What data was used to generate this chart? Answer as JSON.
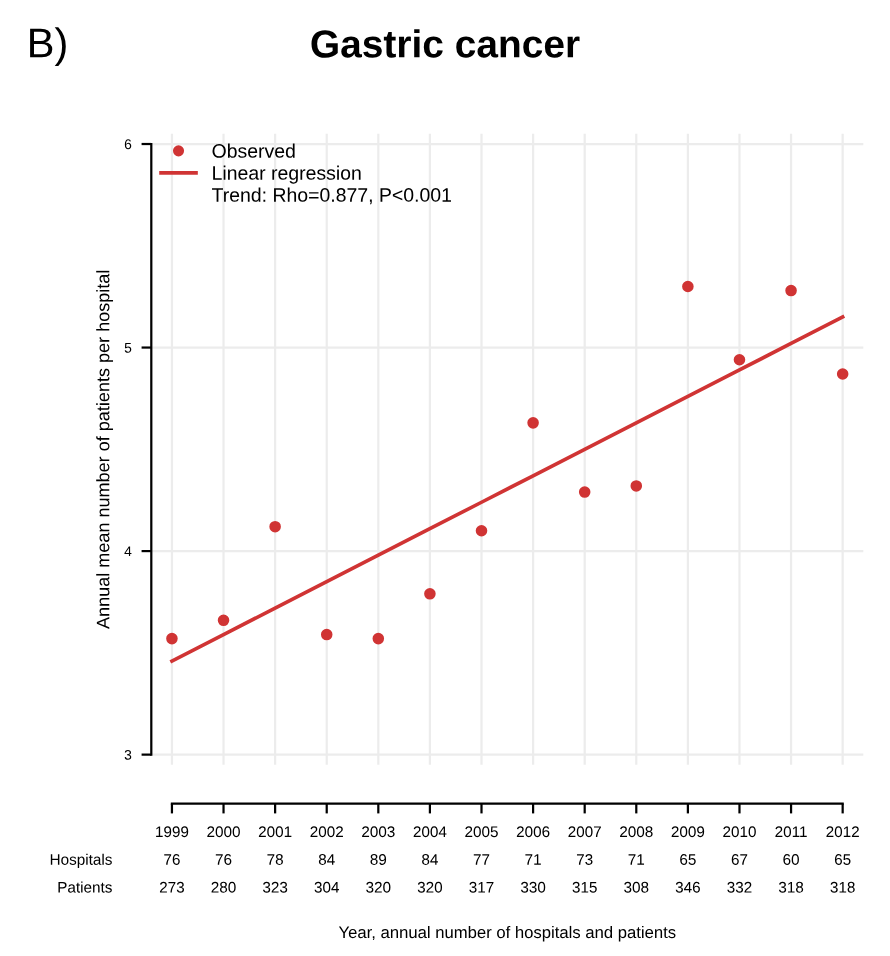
{
  "chart_data": {
    "type": "scatter",
    "title": "Gastric cancer",
    "ylabel": "Annual mean number of patients per hospital",
    "annotations": [
      "B)",
      "Trend: Rho=0.877, P<0.001",
      "Hospitals",
      "Patients",
      "Year, annual number of hospitals and patients"
    ],
    "categories": [
      "1999\n76\n273",
      "2000\n76\n280",
      "2001\n78\n323",
      "2002\n84\n304",
      "2003\n89\n320",
      "2004\n84\n320",
      "2005\n77\n317",
      "2006\n71\n330",
      "2007\n73\n315",
      "2008\n71\n308",
      "2009\n65\n346",
      "2010\n67\n332",
      "2011\n60\n318",
      "2012\n65\n318"
    ],
    "series": [
      {
        "name": "Observed",
        "color": "#d03434",
        "marker": "circle",
        "values": [
          3.57,
          3.66,
          4.12,
          3.59,
          3.57,
          3.79,
          4.1,
          4.63,
          4.29,
          4.32,
          5.3,
          4.94,
          5.28,
          4.87
        ]
      },
      {
        "name": "Linear regression",
        "type": "line",
        "color": "#d03434",
        "values": [
          3.46,
          3.59,
          3.72,
          3.85,
          3.98,
          4.11,
          4.24,
          4.37,
          4.5,
          4.63,
          4.76,
          4.89,
          5.02,
          5.15
        ]
      }
    ],
    "ylim": [
      2.95,
      6.05
    ],
    "yticks": [
      3,
      4,
      5,
      6
    ],
    "grid": true,
    "legend": "top left"
  }
}
